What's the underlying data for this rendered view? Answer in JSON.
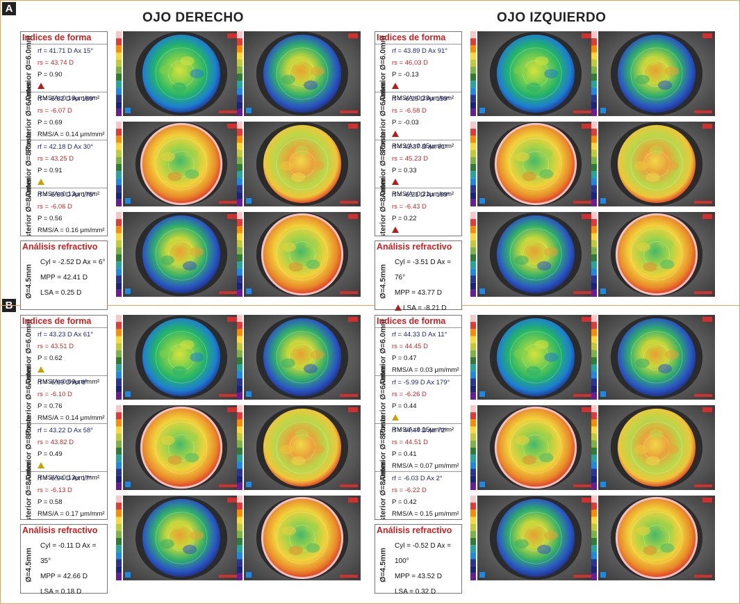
{
  "panels": [
    {
      "badge": "A",
      "shapes": [
        {
          "rotate": "Anterior Ø=6.0mm",
          "rf": "rf = 41.71 D Ax 15°",
          "rs": "rs = 43.74 D",
          "p": "P = 0.90",
          "rms": "RMS/A=0.16μm/mm²",
          "warn": "red"
        },
        {
          "rotate": "Posterior Ø=6.0mm",
          "rf": "rf = -5.82 D Ax 169°",
          "rs": "rs = -6.07 D",
          "p": "P = 0.69",
          "rms": "RMS/A = 0.14 μm/mm²",
          "warn": ""
        },
        {
          "rotate": "Anterior Ø=8.0mm",
          "rf": "rf = 42.18 D Ax 30°",
          "rs": "rs = 43.25 D",
          "p": "P = 0.91",
          "rms": "RMS/A=0.13μm/mm²",
          "warn": "yellow"
        },
        {
          "rotate": "Posterior Ø=8.0mm",
          "rf": "rf = -5.89 D Ax 175°",
          "rs": "rs = -6.06 D",
          "p": "P = 0.56",
          "rms": "RMS/A = 0.16 μm/mm²",
          "warn": ""
        }
      ],
      "refraction": {
        "cyl": "Cyl = -2.52 D Ax = 6°",
        "mpp": "MPP = 42.41 D",
        "lsa": "LSA = 0.25 D",
        "warn": ""
      },
      "right_shapes": [
        {
          "rotate": "Anterior Ø=6.0mm",
          "rf": "rf = 43.89 D Ax 91°",
          "rs": "rs = 46.03 D",
          "p": "P = -0.13",
          "rms": "RMS/A=0.28μm/mm²",
          "warn": "red"
        },
        {
          "rotate": "Posterior Ø=6.0mm",
          "rf": "rf = -6.25 D Ax 159°",
          "rs": "rs = -6.58 D",
          "p": "P = -0.03",
          "rms": "RMS/A=0.45μm/mm²",
          "warn": "red"
        },
        {
          "rotate": "Anterior Ø=8.0mm",
          "rf": "rf = 43.37 D Ax 91°",
          "rs": "rs = 45.23 D",
          "p": "P = 0.33",
          "rms": "RMS/A=0.21μm/mm²",
          "warn": "red"
        },
        {
          "rotate": "Posterior Ø=8.0mm",
          "rf": "rf = -6.21 D Ax 169°",
          "rs": "rs = -6.43 D",
          "p": "P = 0.22",
          "rms": "RMS/A=0.37μm/mm²",
          "warn": "red"
        }
      ],
      "right_refraction": {
        "cyl": "Cyl = -3.51 D Ax = 76°",
        "mpp": "MPP = 43.77 D",
        "lsa": "LSA = -8.21 D",
        "warn": "red"
      }
    },
    {
      "badge": "B",
      "shapes": [
        {
          "rotate": "Anterior Ø=6.0mm",
          "rf": "rf = 43.23 D Ax 61°",
          "rs": "rs = 43.51 D",
          "p": "P = 0.62",
          "rms": "RMS/A=0.06μm/mm²",
          "warn": "yellow"
        },
        {
          "rotate": "Posterior Ø=6.0mm",
          "rf": "rf = -5.89 D Ax 8°",
          "rs": "rs = -6.10 D",
          "p": "P = 0.76",
          "rms": "RMS/A = 0.14 μm/mm²",
          "warn": ""
        },
        {
          "rotate": "Anterior Ø=8.0mm",
          "rf": "rf = 43.22 D Ax 58°",
          "rs": "rs = 43.82 D",
          "p": "P = 0.49",
          "rms": "RMS/A=0.13μm/mm²",
          "warn": "yellow"
        },
        {
          "rotate": "Posterior Ø=8.0mm",
          "rf": "rf = -5.94 D Ax 17°",
          "rs": "rs = -6.13 D",
          "p": "P = 0.58",
          "rms": "RMS/A = 0.17 μm/mm²",
          "warn": ""
        }
      ],
      "refraction": {
        "cyl": "Cyl = -0.11 D Ax = 35°",
        "mpp": "MPP = 42.66 D",
        "lsa": "LSA = 0.18 D",
        "warn": ""
      },
      "right_shapes": [
        {
          "rotate": "Anterior Ø=6.0mm",
          "rf": "rf = 44.33 D Ax 11°",
          "rs": "rs = 44.45 D",
          "p": "P = 0.47",
          "rms": "RMS/A = 0.03 μm/mm²",
          "warn": ""
        },
        {
          "rotate": "Posterior Ø=6.0mm",
          "rf": "rf = -5.99 D Ax 179°",
          "rs": "rs = -6.26 D",
          "p": "P = 0.44",
          "rms": "RMS/A=0.15μm/mm²",
          "warn": "yellow"
        },
        {
          "rotate": "Anterior Ø=8.0mm",
          "rf": "rf = 44.44 D Ax 72°",
          "rs": "rs = 44.51 D",
          "p": "P = 0.41",
          "rms": "RMS/A = 0.07 μm/mm²",
          "warn": ""
        },
        {
          "rotate": "Posterior Ø=8.0mm",
          "rf": "rf = -6.03 D Ax 2°",
          "rs": "rs = -6.22 D",
          "p": "P = 0.42",
          "rms": "RMS/A = 0.15 μm/mm²",
          "warn": ""
        }
      ],
      "right_refraction": {
        "cyl": "Cyl = -0.52 D Ax = 100°",
        "mpp": "MPP = 43.52 D",
        "lsa": "LSA = 0.32 D",
        "warn": ""
      }
    }
  ],
  "headers": {
    "right_eye": "OJO DERECHO",
    "left_eye": "OJO IZQUIERDO"
  },
  "labels": {
    "shape_indices": "Indices de forma",
    "refractive_analysis": "Análisis refractivo",
    "zone_45": "Ø=4.5mm"
  },
  "colors": {
    "title_red": "#cc2020",
    "rf_blue": "#1a237e",
    "rs_red": "#c62828",
    "warn_red": "#b71c1c",
    "warn_yellow": "#c9a200"
  }
}
